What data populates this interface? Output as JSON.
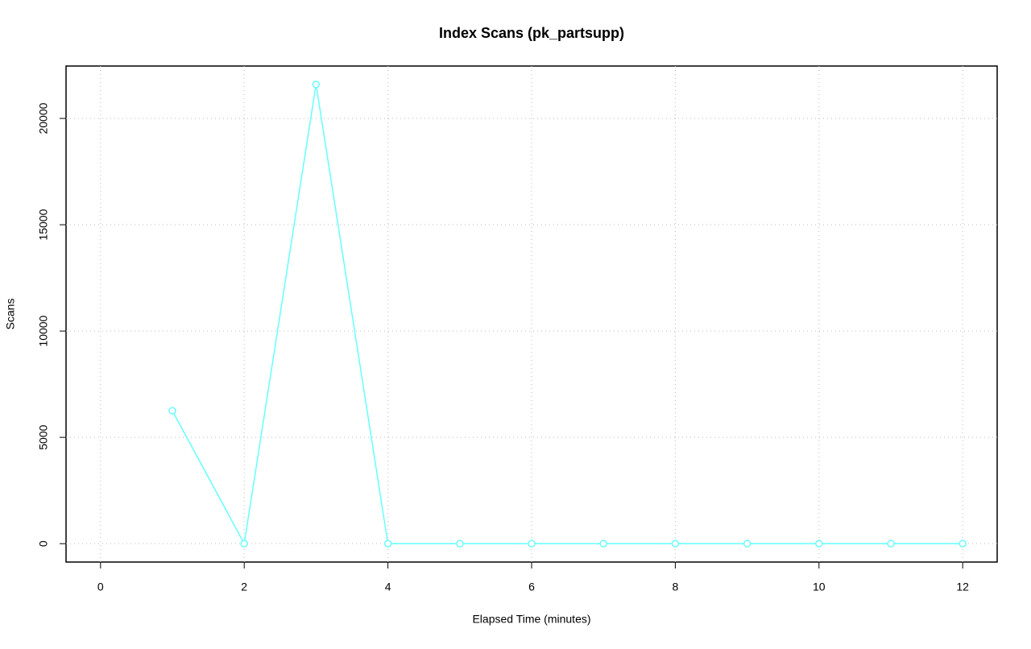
{
  "chart_data": {
    "type": "line",
    "title": "Index Scans (pk_partsupp)",
    "x_label": "Elapsed Time (minutes)",
    "y_label": "Scans",
    "x": [
      1,
      2,
      3,
      4,
      5,
      6,
      7,
      8,
      9,
      10,
      11,
      12
    ],
    "series": [
      {
        "color": "#66ffff",
        "values": [
          6250,
          0,
          21600,
          0,
          0,
          0,
          0,
          0,
          0,
          0,
          0,
          0
        ]
      }
    ],
    "xlim": [
      -0.48,
      12.48
    ],
    "xticks": [
      0,
      2,
      4,
      6,
      8,
      10,
      12
    ],
    "ylim": [
      -864,
      22464
    ],
    "yticks": [
      0,
      5000,
      10000,
      15000,
      20000
    ],
    "grid": true
  }
}
